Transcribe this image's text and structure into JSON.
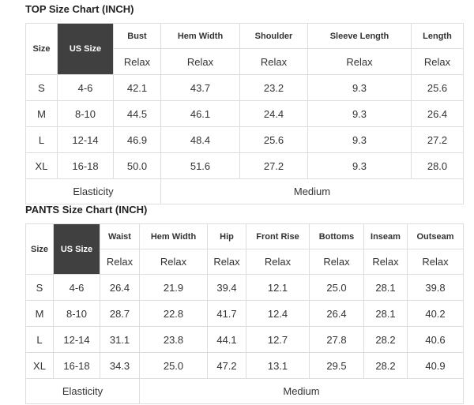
{
  "top": {
    "title": "TOP Size Chart (INCH)",
    "columns": [
      "Size",
      "US Size",
      "Bust",
      "Hem Width",
      "Shoulder",
      "Sleeve Length",
      "Length"
    ],
    "subheader": [
      "Relax",
      "Relax",
      "Relax",
      "Relax",
      "Relax"
    ],
    "rows": [
      [
        "S",
        "4-6",
        "42.1",
        "43.7",
        "23.2",
        "9.3",
        "25.6"
      ],
      [
        "M",
        "8-10",
        "44.5",
        "46.1",
        "24.4",
        "9.3",
        "26.4"
      ],
      [
        "L",
        "12-14",
        "46.9",
        "48.4",
        "25.6",
        "9.3",
        "27.2"
      ],
      [
        "XL",
        "16-18",
        "50.0",
        "51.6",
        "27.2",
        "9.3",
        "28.0"
      ]
    ],
    "footer": [
      "Elasticity",
      "Medium"
    ]
  },
  "pants": {
    "title": "PANTS Size Chart (INCH)",
    "columns": [
      "Size",
      "US Size",
      "Waist",
      "Hem Width",
      "Hip",
      "Front Rise",
      "Bottoms",
      "Inseam",
      "Outseam"
    ],
    "subheader": [
      "Relax",
      "Relax",
      "Relax",
      "Relax",
      "Relax",
      "Relax",
      "Relax"
    ],
    "rows": [
      [
        "S",
        "4-6",
        "26.4",
        "21.9",
        "39.4",
        "12.1",
        "25.0",
        "28.1",
        "39.8"
      ],
      [
        "M",
        "8-10",
        "28.7",
        "22.8",
        "41.7",
        "12.4",
        "26.4",
        "28.1",
        "40.2"
      ],
      [
        "L",
        "12-14",
        "31.1",
        "23.8",
        "44.1",
        "12.7",
        "27.8",
        "28.2",
        "40.6"
      ],
      [
        "XL",
        "16-18",
        "34.3",
        "25.0",
        "47.2",
        "13.1",
        "29.5",
        "28.2",
        "40.9"
      ]
    ],
    "footer": [
      "Elasticity",
      "Medium"
    ]
  }
}
